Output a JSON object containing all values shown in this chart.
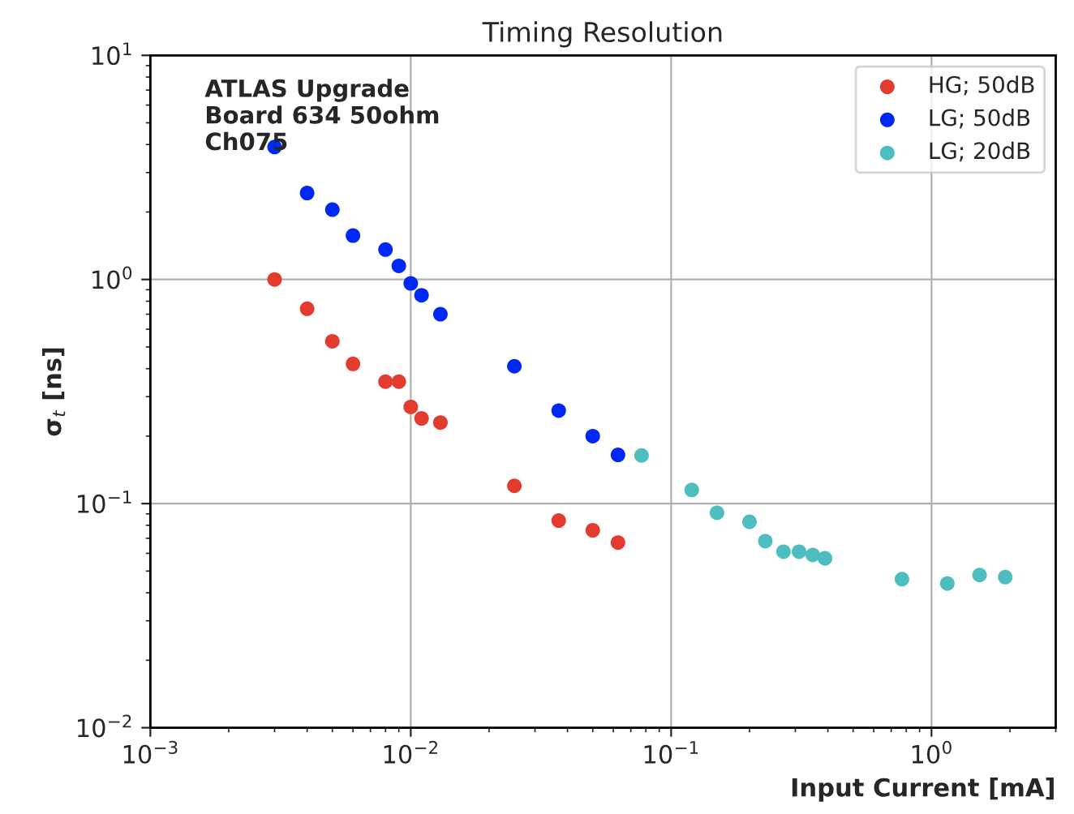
{
  "chart_data": {
    "type": "scatter",
    "title": "Timing Resolution",
    "xlabel": "Input Current [mA]",
    "ylabel": "σ$_{t}$ [ns]",
    "annotations": [
      "ATLAS Upgrade\nBoard 634 50ohm\nCh075"
    ],
    "log": "xy",
    "xlim": [
      0.001,
      3
    ],
    "ylim": [
      0.01,
      10
    ],
    "xticks": [
      {
        "value": 0.001,
        "label": "10$^{−3}$"
      },
      {
        "value": 0.01,
        "label": "10$^{−2}$"
      },
      {
        "value": 0.1,
        "label": "10$^{−1}$"
      },
      {
        "value": 1,
        "label": "10$^{0}$"
      }
    ],
    "yticks": [
      {
        "value": 0.01,
        "label": "10$^{−2}$"
      },
      {
        "value": 0.1,
        "label": "10$^{−1}$"
      },
      {
        "value": 1,
        "label": "10$^{0}$"
      },
      {
        "value": 10,
        "label": "10$^{1}$"
      }
    ],
    "grid": true,
    "legend": "top right",
    "marker": "circle",
    "series": [
      {
        "name": "HG; 50dB",
        "color": "#e33b2e",
        "x": [
          0.003,
          0.004,
          0.005,
          0.006,
          0.008,
          0.009,
          0.01,
          0.011,
          0.013,
          0.025,
          0.037,
          0.05,
          0.0625
        ],
        "values": [
          1.0,
          0.74,
          0.53,
          0.42,
          0.35,
          0.35,
          0.27,
          0.24,
          0.23,
          0.12,
          0.084,
          0.076,
          0.067
        ]
      },
      {
        "name": "LG; 50dB",
        "color": "#0028f5",
        "x": [
          0.003,
          0.004,
          0.005,
          0.006,
          0.008,
          0.009,
          0.01,
          0.011,
          0.013,
          0.025,
          0.037,
          0.05,
          0.0625
        ],
        "values": [
          3.9,
          2.43,
          2.05,
          1.57,
          1.36,
          1.15,
          0.96,
          0.85,
          0.7,
          0.41,
          0.26,
          0.2,
          0.165
        ]
      },
      {
        "name": "LG; 20dB",
        "color": "#4dbdbf",
        "x": [
          0.077,
          0.12,
          0.15,
          0.2,
          0.23,
          0.27,
          0.31,
          0.35,
          0.39,
          0.77,
          1.15,
          1.53,
          1.92
        ],
        "values": [
          0.164,
          0.115,
          0.091,
          0.083,
          0.068,
          0.061,
          0.061,
          0.059,
          0.057,
          0.046,
          0.044,
          0.048,
          0.047
        ]
      }
    ]
  }
}
